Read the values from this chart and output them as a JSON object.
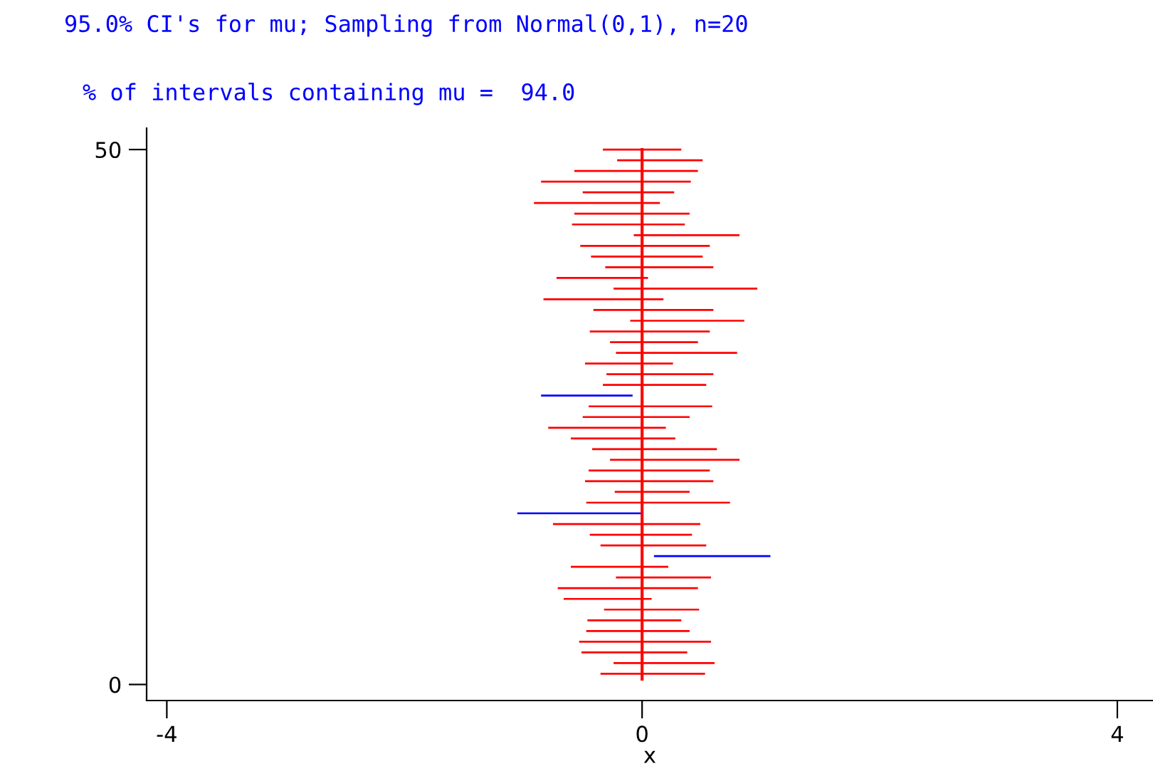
{
  "chart_data": {
    "type": "bar",
    "orientation": "horizontal",
    "title": "95.0% CI's for mu; Sampling from Normal(0,1), n=20",
    "subtitle": "% of intervals containing mu =  94.0",
    "xlabel": "x",
    "x": [
      1,
      2,
      3,
      4,
      5,
      6,
      7,
      8,
      9,
      10,
      11,
      12,
      13,
      14,
      15,
      16,
      17,
      18,
      19,
      20,
      21,
      22,
      23,
      24,
      25,
      26,
      27,
      28,
      29,
      30,
      31,
      32,
      33,
      34,
      35,
      36,
      37,
      38,
      39,
      40,
      41,
      42,
      43,
      44,
      45,
      46,
      47,
      48,
      49,
      50
    ],
    "base": [
      -0.35,
      -0.24,
      -0.51,
      -0.53,
      -0.47,
      -0.46,
      -0.32,
      -0.66,
      -0.71,
      -0.22,
      -0.6,
      0.1,
      -0.35,
      -0.44,
      -0.75,
      -1.05,
      -0.47,
      -0.23,
      -0.48,
      -0.45,
      -0.27,
      -0.42,
      -0.6,
      -0.79,
      -0.5,
      -0.45,
      -0.85,
      -0.33,
      -0.3,
      -0.48,
      -0.22,
      -0.27,
      -0.44,
      -0.1,
      -0.41,
      -0.83,
      -0.24,
      -0.72,
      -0.31,
      -0.43,
      -0.52,
      -0.07,
      -0.59,
      -0.57,
      -0.91,
      -0.5,
      -0.85,
      -0.57,
      -0.21,
      -0.33
    ],
    "values": [
      0.88,
      0.85,
      0.89,
      1.11,
      0.87,
      0.79,
      0.8,
      0.74,
      1.18,
      0.8,
      0.82,
      0.98,
      0.89,
      0.86,
      1.24,
      1.04,
      1.21,
      0.63,
      1.08,
      1.02,
      1.09,
      1.05,
      0.88,
      0.99,
      0.9,
      1.04,
      0.77,
      0.87,
      0.9,
      0.74,
      1.02,
      0.74,
      1.01,
      0.96,
      1.01,
      1.01,
      1.21,
      0.77,
      0.91,
      0.94,
      1.09,
      0.89,
      0.95,
      0.97,
      1.06,
      0.77,
      1.26,
      1.04,
      0.72,
      0.66
    ],
    "colors": [
      "#ff0000",
      "#ff0000",
      "#ff0000",
      "#ff0000",
      "#ff0000",
      "#ff0000",
      "#ff0000",
      "#ff0000",
      "#ff0000",
      "#ff0000",
      "#ff0000",
      "#0000ff",
      "#ff0000",
      "#ff0000",
      "#ff0000",
      "#0000ff",
      "#ff0000",
      "#ff0000",
      "#ff0000",
      "#ff0000",
      "#ff0000",
      "#ff0000",
      "#ff0000",
      "#ff0000",
      "#ff0000",
      "#ff0000",
      "#0000ff",
      "#ff0000",
      "#ff0000",
      "#ff0000",
      "#ff0000",
      "#ff0000",
      "#ff0000",
      "#ff0000",
      "#ff0000",
      "#ff0000",
      "#ff0000",
      "#ff0000",
      "#ff0000",
      "#ff0000",
      "#ff0000",
      "#ff0000",
      "#ff0000",
      "#ff0000",
      "#ff0000",
      "#ff0000",
      "#ff0000",
      "#ff0000",
      "#ff0000",
      "#ff0000"
    ],
    "ref_lines": [
      {
        "axis": "x",
        "value": 0,
        "color": "#ff0000"
      }
    ],
    "xlim": [
      -4.17,
      4.3
    ],
    "xticks": [
      -4,
      0,
      4
    ],
    "ylim": [
      -1.5,
      52
    ],
    "yticks": [
      0,
      50
    ],
    "grid": false,
    "legend": false
  }
}
